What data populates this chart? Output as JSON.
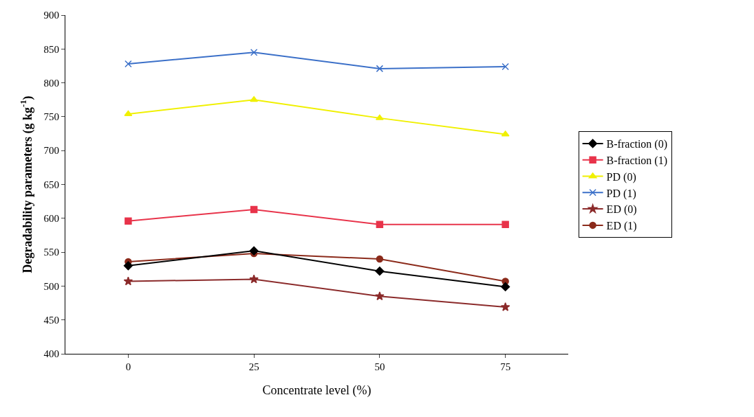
{
  "chart_data": {
    "type": "line",
    "xlabel": "Concentrate level (%)",
    "ylabel": "Degradability parameters (g kg$^{-1}$)",
    "categories": [
      "0",
      "25",
      "50",
      "75"
    ],
    "ylim": [
      400,
      900
    ],
    "yticks": [
      400,
      450,
      500,
      550,
      600,
      650,
      700,
      750,
      800,
      850,
      900
    ],
    "legend": "right",
    "line_style": "solid",
    "series": [
      {
        "name": "B-fraction (0)",
        "color": "#000000",
        "marker": "diamond",
        "values": [
          530,
          552,
          522,
          499
        ]
      },
      {
        "name": "B-fraction (1)",
        "color": "#e8334a",
        "marker": "square",
        "values": [
          596,
          613,
          591,
          591
        ]
      },
      {
        "name": "PD (0)",
        "color": "#f0f000",
        "marker": "triangle",
        "values": [
          754,
          775,
          748,
          724
        ]
      },
      {
        "name": "PD (1)",
        "color": "#3a6fc8",
        "marker": "cross",
        "values": [
          828,
          845,
          821,
          824
        ]
      },
      {
        "name": "ED (0)",
        "color": "#8b2a2a",
        "marker": "star",
        "values": [
          507,
          510,
          485,
          469
        ]
      },
      {
        "name": "ED (1)",
        "color": "#8b2a1a",
        "marker": "circle",
        "values": [
          536,
          548,
          540,
          507
        ]
      }
    ]
  }
}
